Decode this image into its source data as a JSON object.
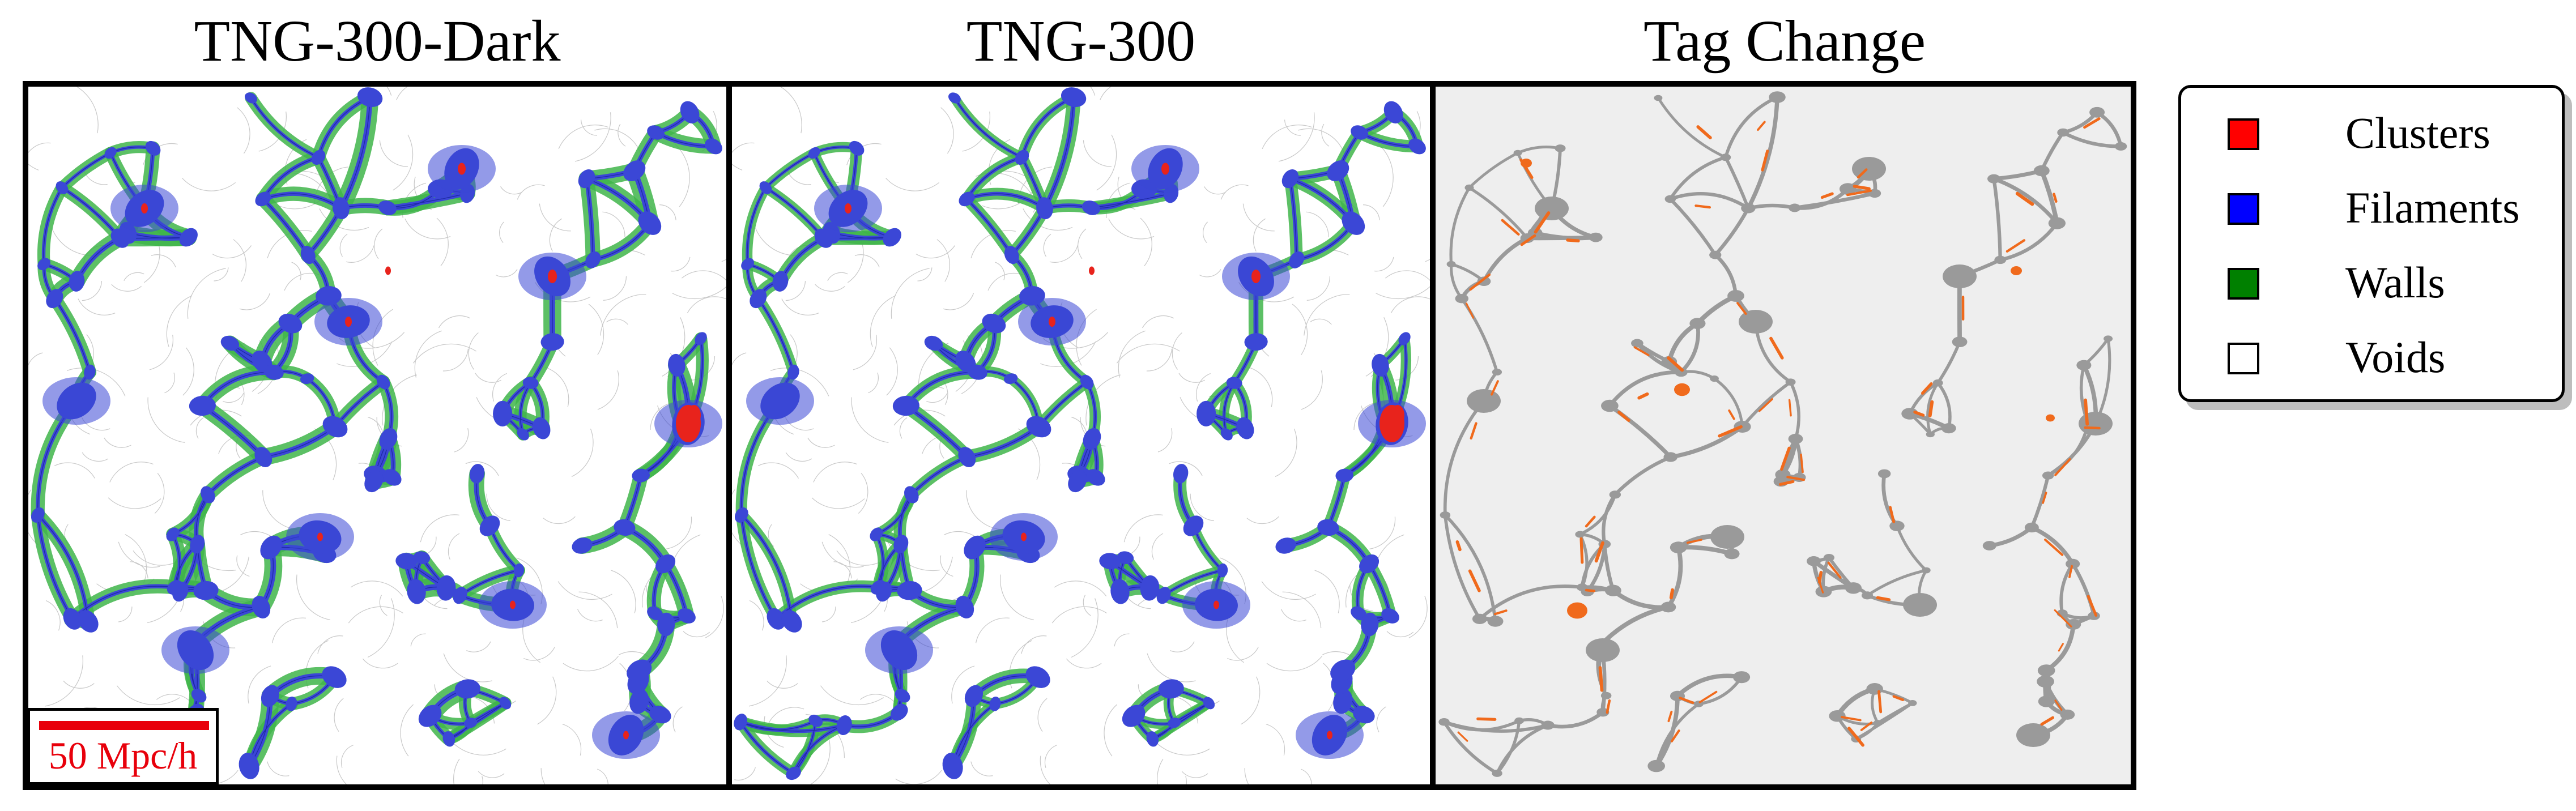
{
  "titles": {
    "panel_1": "TNG-300-Dark",
    "panel_2": "TNG-300",
    "panel_3": "Tag Change"
  },
  "scale_bar": {
    "label": "50 Mpc/h",
    "color": "#e8000b"
  },
  "legend": {
    "items": [
      {
        "label": "Clusters",
        "color": "#ff0000"
      },
      {
        "label": "Filaments",
        "color": "#0000ff"
      },
      {
        "label": "Walls",
        "color": "#008000"
      },
      {
        "label": "Voids",
        "color": "#ffffff"
      }
    ]
  },
  "colors": {
    "cluster": "#e8231c",
    "filament": "#3b47d6",
    "filament_dark": "#1e2aa8",
    "wall": "#3fb54a",
    "void": "#ffffff",
    "tag_change_changed": "#f06a1c",
    "tag_change_structure": "#9a9a9a",
    "tag_change_background": "#eeeeee"
  }
}
